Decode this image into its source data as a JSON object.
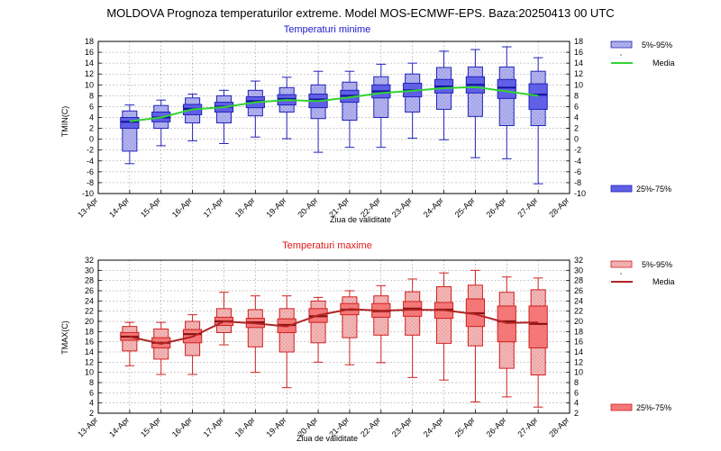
{
  "title": "MOLDOVA  Prognoza temperaturilor extreme.  Model MOS-ECMWF-EPS. Baza:20250413 00 UTC",
  "chart_data": [
    {
      "type": "box",
      "title": "Temperaturi minime",
      "title_color": "#1a1ad0",
      "xlabel": "Ziua de validitate",
      "ylabel": "TMIN(C)",
      "ylim": [
        -10,
        18
      ],
      "yticks": [
        -10,
        -8,
        -6,
        -4,
        -2,
        0,
        2,
        4,
        6,
        8,
        10,
        12,
        14,
        16,
        18
      ],
      "xticks": [
        "13-Apr",
        "14-Apr",
        "15-Apr",
        "16-Apr",
        "17-Apr",
        "18-Apr",
        "19-Apr",
        "20-Apr",
        "21-Apr",
        "22-Apr",
        "23-Apr",
        "24-Apr",
        "25-Apr",
        "26-Apr",
        "27-Apr",
        "28-Apr"
      ],
      "colors": {
        "p5_95": "#b4b4ef",
        "p25_75": "#6060e6",
        "edge": "#2222bb",
        "median": "#1515a0",
        "mean": "#32d232"
      },
      "legend": {
        "p5_95": "5%-95%",
        "mean": "Media",
        "p25_75": "25%-75%"
      },
      "boxes": [
        {
          "day": "14-Apr",
          "min": -4.5,
          "p5": -2.2,
          "p25": 2.0,
          "median": 3.2,
          "p75": 4.0,
          "p95": 5.2,
          "max": 6.3,
          "mean": 3.3
        },
        {
          "day": "15-Apr",
          "min": -1.2,
          "p5": 2.0,
          "p25": 3.2,
          "median": 4.0,
          "p75": 5.0,
          "p95": 6.2,
          "max": 7.2,
          "mean": 4.0
        },
        {
          "day": "16-Apr",
          "min": -0.3,
          "p5": 3.0,
          "p25": 4.5,
          "median": 5.6,
          "p75": 6.4,
          "p95": 7.6,
          "max": 8.3,
          "mean": 5.5
        },
        {
          "day": "17-Apr",
          "min": -0.8,
          "p5": 3.0,
          "p25": 5.0,
          "median": 6.0,
          "p75": 6.8,
          "p95": 8.0,
          "max": 9.0,
          "mean": 5.9
        },
        {
          "day": "18-Apr",
          "min": 0.4,
          "p5": 4.3,
          "p25": 5.8,
          "median": 7.0,
          "p75": 7.8,
          "p95": 9.0,
          "max": 10.7,
          "mean": 6.8
        },
        {
          "day": "19-Apr",
          "min": 0.1,
          "p5": 5.0,
          "p25": 6.3,
          "median": 7.4,
          "p75": 8.2,
          "p95": 9.5,
          "max": 11.4,
          "mean": 7.2
        },
        {
          "day": "20-Apr",
          "min": -2.4,
          "p5": 3.8,
          "p25": 5.8,
          "median": 7.3,
          "p75": 8.3,
          "p95": 10.0,
          "max": 12.5,
          "mean": 7.0
        },
        {
          "day": "21-Apr",
          "min": -1.5,
          "p5": 3.5,
          "p25": 6.8,
          "median": 8.0,
          "p75": 9.0,
          "p95": 10.5,
          "max": 12.5,
          "mean": 7.7
        },
        {
          "day": "22-Apr",
          "min": -1.5,
          "p5": 4.0,
          "p25": 7.6,
          "median": 8.8,
          "p75": 10.0,
          "p95": 11.5,
          "max": 13.8,
          "mean": 8.5
        },
        {
          "day": "23-Apr",
          "min": 0.2,
          "p5": 5.0,
          "p25": 7.8,
          "median": 9.0,
          "p75": 10.3,
          "p95": 12.0,
          "max": 14.0,
          "mean": 8.9
        },
        {
          "day": "24-Apr",
          "min": -0.1,
          "p5": 5.5,
          "p25": 8.5,
          "median": 9.7,
          "p75": 11.0,
          "p95": 13.2,
          "max": 16.2,
          "mean": 9.4
        },
        {
          "day": "25-Apr",
          "min": -3.4,
          "p5": 4.2,
          "p25": 8.5,
          "median": 10.0,
          "p75": 11.5,
          "p95": 13.3,
          "max": 16.5,
          "mean": 9.6
        },
        {
          "day": "26-Apr",
          "min": -3.6,
          "p5": 2.5,
          "p25": 7.5,
          "median": 9.5,
          "p75": 11.0,
          "p95": 13.3,
          "max": 17.0,
          "mean": 8.8
        },
        {
          "day": "27-Apr",
          "min": -8.2,
          "p5": 2.5,
          "p25": 5.5,
          "median": 8.2,
          "p75": 10.2,
          "p95": 12.5,
          "max": 15.0,
          "mean": 8.0
        }
      ]
    },
    {
      "type": "box",
      "title": "Temperaturi maxime",
      "title_color": "#e01818",
      "xlabel": "Ziua de validitate",
      "ylabel": "TMAX(C)",
      "ylim": [
        2,
        32
      ],
      "yticks": [
        2,
        4,
        6,
        8,
        10,
        12,
        14,
        16,
        18,
        20,
        22,
        24,
        26,
        28,
        30,
        32
      ],
      "xticks": [
        "13-Apr",
        "14-Apr",
        "15-Apr",
        "16-Apr",
        "17-Apr",
        "18-Apr",
        "19-Apr",
        "20-Apr",
        "21-Apr",
        "22-Apr",
        "23-Apr",
        "24-Apr",
        "25-Apr",
        "26-Apr",
        "27-Apr",
        "28-Apr"
      ],
      "colors": {
        "p5_95": "#f4b8b8",
        "p25_75": "#f47878",
        "edge": "#d02020",
        "median": "#8a1010",
        "mean": "#b02424"
      },
      "legend": {
        "p5_95": "5%-95%",
        "mean": "Media",
        "p25_75": "25%-75%"
      },
      "boxes": [
        {
          "day": "14-Apr",
          "min": 11.3,
          "p5": 14.2,
          "p25": 16.3,
          "median": 17.0,
          "p75": 17.8,
          "p95": 19.0,
          "max": 19.8,
          "mean": 17.0
        },
        {
          "day": "15-Apr",
          "min": 9.6,
          "p5": 12.6,
          "p25": 14.8,
          "median": 15.8,
          "p75": 16.8,
          "p95": 18.5,
          "max": 19.8,
          "mean": 15.6
        },
        {
          "day": "16-Apr",
          "min": 9.6,
          "p5": 13.3,
          "p25": 15.8,
          "median": 17.5,
          "p75": 18.4,
          "p95": 20.0,
          "max": 21.3,
          "mean": 17.0
        },
        {
          "day": "17-Apr",
          "min": 15.4,
          "p5": 17.8,
          "p25": 19.2,
          "median": 20.0,
          "p75": 20.8,
          "p95": 22.5,
          "max": 25.7,
          "mean": 20.0
        },
        {
          "day": "18-Apr",
          "min": 10.0,
          "p5": 15.0,
          "p25": 18.8,
          "median": 19.8,
          "p75": 20.6,
          "p95": 22.3,
          "max": 25.0,
          "mean": 19.6
        },
        {
          "day": "19-Apr",
          "min": 7.0,
          "p5": 14.0,
          "p25": 17.8,
          "median": 19.3,
          "p75": 20.5,
          "p95": 22.5,
          "max": 25.0,
          "mean": 19.0
        },
        {
          "day": "20-Apr",
          "min": 12.0,
          "p5": 15.8,
          "p25": 19.8,
          "median": 21.0,
          "p75": 22.5,
          "p95": 24.0,
          "max": 24.7,
          "mean": 21.2
        },
        {
          "day": "21-Apr",
          "min": 11.5,
          "p5": 16.8,
          "p25": 21.3,
          "median": 22.3,
          "p75": 23.5,
          "p95": 24.8,
          "max": 26.0,
          "mean": 22.4
        },
        {
          "day": "22-Apr",
          "min": 11.9,
          "p5": 17.3,
          "p25": 20.8,
          "median": 22.0,
          "p75": 23.5,
          "p95": 25.0,
          "max": 27.0,
          "mean": 22.1
        },
        {
          "day": "23-Apr",
          "min": 9.0,
          "p5": 17.3,
          "p25": 21.0,
          "median": 22.5,
          "p75": 23.9,
          "p95": 25.8,
          "max": 28.3,
          "mean": 22.3
        },
        {
          "day": "24-Apr",
          "min": 8.5,
          "p5": 15.7,
          "p25": 20.6,
          "median": 22.3,
          "p75": 23.7,
          "p95": 26.8,
          "max": 29.5,
          "mean": 22.2
        },
        {
          "day": "25-Apr",
          "min": 4.2,
          "p5": 15.2,
          "p25": 19.0,
          "median": 21.6,
          "p75": 24.4,
          "p95": 27.1,
          "max": 30.0,
          "mean": 21.4
        },
        {
          "day": "26-Apr",
          "min": 5.2,
          "p5": 10.8,
          "p25": 16.0,
          "median": 20.0,
          "p75": 23.0,
          "p95": 25.7,
          "max": 28.7,
          "mean": 19.7
        },
        {
          "day": "27-Apr",
          "min": 3.2,
          "p5": 9.5,
          "p25": 14.8,
          "median": 19.5,
          "p75": 23.0,
          "p95": 26.2,
          "max": 28.5,
          "mean": 19.8
        }
      ]
    }
  ]
}
